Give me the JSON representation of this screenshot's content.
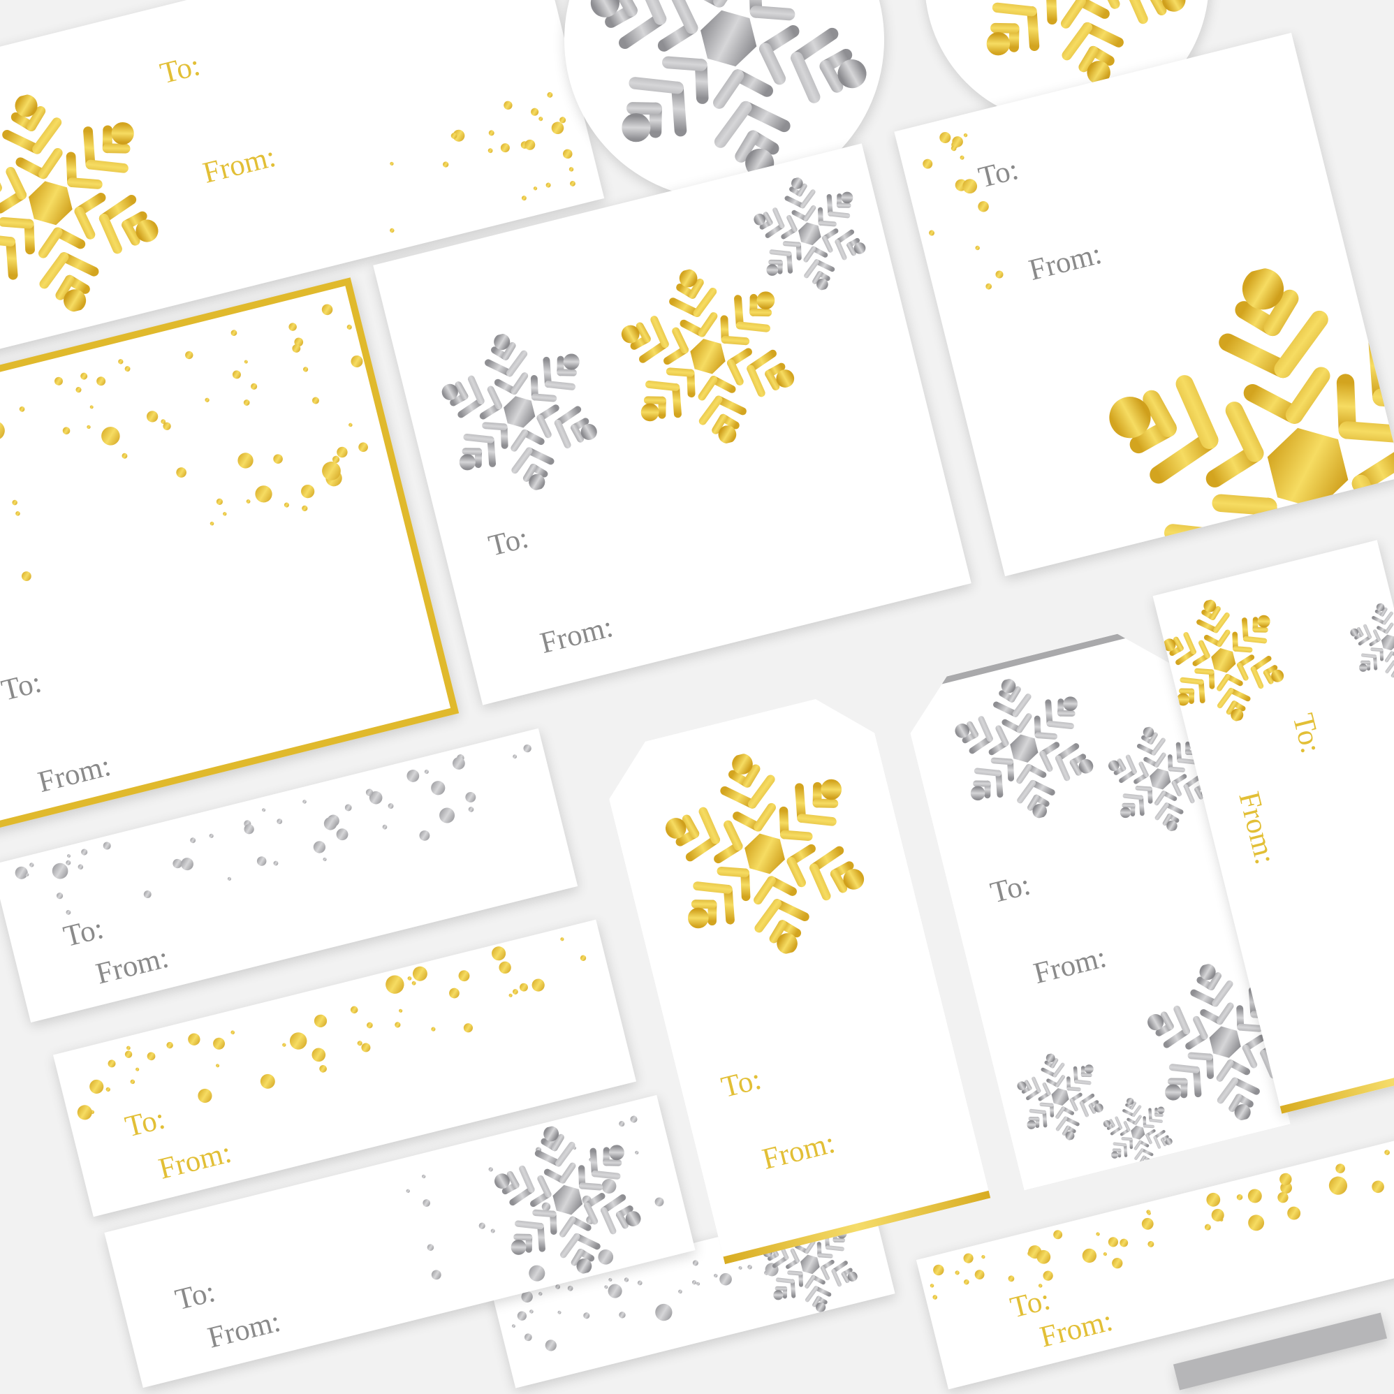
{
  "colors": {
    "gold": "#e0b92c",
    "gold_light": "#f5dc6a",
    "silver": "#9c9ca0",
    "silver_light": "#d2d2d4",
    "text_gray": "#8a8a8a",
    "text_gold": "#e2bf36"
  },
  "icons": {
    "snowflake": "snowflake-icon",
    "dot": "confetti-dot"
  },
  "cards": [
    {
      "style": "gold-snowflake-label",
      "to": "To:",
      "from": "From:"
    },
    {
      "style": "silver-snowflake-circle"
    },
    {
      "style": "gold-snowflake-circle"
    },
    {
      "style": "gold-border-dots-card",
      "to": "To:",
      "from": "From:"
    },
    {
      "style": "three-snowflake-card",
      "to": "To:",
      "from": "From:"
    },
    {
      "style": "gold-big-snowflake-card",
      "to": "To:",
      "from": "From:"
    },
    {
      "style": "silver-dots-label",
      "to": "To:",
      "from": "From:"
    },
    {
      "style": "gold-dots-label",
      "to": "To:",
      "from": "From:"
    },
    {
      "style": "silver-snowflake-label",
      "to": "To:",
      "from": "From:"
    },
    {
      "style": "gold-snowflake-tag",
      "to": "To:",
      "from": "From:"
    },
    {
      "style": "silver-snowflake-tag",
      "to": "To:",
      "from": "From:"
    },
    {
      "style": "gold-vertical-tag",
      "to": "To:",
      "from": "From:"
    },
    {
      "style": "gold-dots-label-bottom",
      "to": "To:",
      "from": "From:"
    },
    {
      "style": "silver-snowflake-dots-label"
    }
  ]
}
